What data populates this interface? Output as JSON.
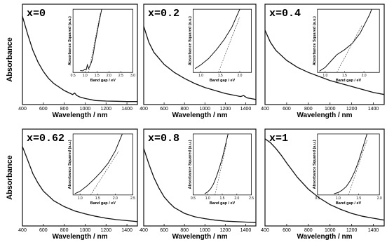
{
  "figure": {
    "row_ylabel": "Absorbance"
  },
  "chart_data": [
    {
      "type": "line",
      "panel_label": "x=0",
      "xlabel": "Wavelength / nm",
      "ylabel": "Absorbance",
      "xlim": [
        400,
        1500
      ],
      "ylim": [
        0,
        1
      ],
      "xticks": [
        400,
        600,
        800,
        1000,
        1200,
        1400
      ],
      "series": [
        {
          "x": [
            400,
            450,
            500,
            550,
            600,
            650,
            700,
            800,
            880,
            900,
            920,
            950,
            1000,
            1050,
            1100,
            1200,
            1300,
            1400,
            1500
          ],
          "y": [
            0.88,
            0.7,
            0.54,
            0.42,
            0.33,
            0.26,
            0.21,
            0.14,
            0.1,
            0.115,
            0.09,
            0.075,
            0.06,
            0.05,
            0.04,
            0.035,
            0.033,
            0.03,
            0.03
          ]
        }
      ],
      "inset": {
        "xlabel": "Band gap / eV",
        "ylabel": "Absorbance Squared (a.u.)",
        "xlim": [
          0.5,
          3.0
        ],
        "xticks": [
          "0.5",
          "1.0",
          "1.5",
          "2.0",
          "2.5",
          "3.0"
        ],
        "series": [
          {
            "x": [
              0.8,
              0.9,
              1.0,
              1.05,
              1.1,
              1.15,
              1.2,
              1.25,
              1.3,
              1.35,
              1.4,
              1.5,
              1.6,
              1.7
            ],
            "y": [
              0.03,
              0.025,
              0.05,
              0.04,
              0.12,
              0.06,
              0.1,
              0.14,
              0.2,
              0.3,
              0.42,
              0.62,
              0.82,
              1.0
            ]
          }
        ],
        "fit_line": {
          "x": [
            1.15,
            1.65
          ],
          "y": [
            0.0,
            0.95
          ]
        }
      }
    },
    {
      "type": "line",
      "panel_label": "x=0.2",
      "xlabel": "Wavelength / nm",
      "ylabel": "Absorbance",
      "xlim": [
        400,
        1500
      ],
      "ylim": [
        0,
        1
      ],
      "xticks": [
        400,
        600,
        800,
        1000,
        1200,
        1400
      ],
      "series": [
        {
          "x": [
            400,
            450,
            500,
            600,
            700,
            800,
            900,
            1000,
            1100,
            1200,
            1300,
            1350,
            1380,
            1400,
            1420,
            1450,
            1500
          ],
          "y": [
            0.78,
            0.62,
            0.52,
            0.4,
            0.32,
            0.26,
            0.21,
            0.17,
            0.14,
            0.11,
            0.09,
            0.08,
            0.09,
            0.075,
            0.065,
            0.06,
            0.05
          ]
        }
      ],
      "inset": {
        "xlabel": "Band gap / eV",
        "ylabel": "Absorbance Squared (a.u.)",
        "xlim": [
          0.8,
          2.3
        ],
        "xticks": [
          "1.0",
          "1.5",
          "2.0"
        ],
        "series": [
          {
            "x": [
              0.85,
              1.0,
              1.2,
              1.4,
              1.6,
              1.8,
              1.9,
              2.0
            ],
            "y": [
              0.06,
              0.12,
              0.22,
              0.36,
              0.52,
              0.72,
              0.86,
              1.0
            ]
          }
        ],
        "fit_line": {
          "x": [
            1.45,
            2.0
          ],
          "y": [
            0.0,
            0.88
          ]
        }
      }
    },
    {
      "type": "line",
      "panel_label": "x=0.4",
      "xlabel": "Wavelength / nm",
      "ylabel": "Absorbance",
      "xlim": [
        400,
        1500
      ],
      "ylim": [
        0,
        1
      ],
      "xticks": [
        400,
        600,
        800,
        1000,
        1200,
        1400
      ],
      "series": [
        {
          "x": [
            400,
            450,
            500,
            600,
            700,
            800,
            900,
            1000,
            1100,
            1200,
            1300,
            1400,
            1500
          ],
          "y": [
            0.74,
            0.62,
            0.54,
            0.44,
            0.37,
            0.32,
            0.28,
            0.24,
            0.21,
            0.18,
            0.15,
            0.12,
            0.1
          ]
        }
      ],
      "inset": {
        "xlabel": "Band gap / eV",
        "ylabel": "Absorbance Squared (a.u.)",
        "xlim": [
          0.8,
          2.4
        ],
        "xticks": [
          "1.0",
          "1.5",
          "2.0"
        ],
        "series": [
          {
            "x": [
              0.85,
              1.0,
              1.15,
              1.3,
              1.5,
              1.7,
              1.9,
              2.05,
              2.15,
              2.2
            ],
            "y": [
              0.02,
              0.08,
              0.18,
              0.28,
              0.36,
              0.46,
              0.62,
              0.8,
              0.92,
              1.0
            ]
          }
        ],
        "fit_line": {
          "x": [
            1.3,
            1.95
          ],
          "y": [
            0.0,
            0.75
          ]
        }
      }
    },
    {
      "type": "line",
      "panel_label": "x=0.62",
      "xlabel": "Wavelength / nm",
      "ylabel": "Absorbance",
      "xlim": [
        400,
        1500
      ],
      "ylim": [
        0,
        1
      ],
      "xticks": [
        400,
        600,
        800,
        1000,
        1200,
        1400
      ],
      "series": [
        {
          "x": [
            400,
            450,
            500,
            550,
            600,
            700,
            800,
            900,
            1000,
            1100,
            1200,
            1300,
            1400,
            1500
          ],
          "y": [
            0.82,
            0.68,
            0.54,
            0.44,
            0.36,
            0.26,
            0.2,
            0.155,
            0.125,
            0.1,
            0.08,
            0.065,
            0.055,
            0.045
          ]
        }
      ],
      "inset": {
        "xlabel": "Band gap / eV",
        "ylabel": "Absorbance Squared (a.u.)",
        "xlim": [
          0.8,
          2.5
        ],
        "xticks": [
          "1.0",
          "1.5",
          "2.0",
          "2.5"
        ],
        "series": [
          {
            "x": [
              0.85,
              1.0,
              1.2,
              1.4,
              1.6,
              1.8,
              2.0,
              2.1,
              2.2
            ],
            "y": [
              0.02,
              0.06,
              0.15,
              0.26,
              0.38,
              0.52,
              0.72,
              0.86,
              1.0
            ]
          }
        ],
        "fit_line": {
          "x": [
            1.3,
            2.1
          ],
          "y": [
            0.0,
            0.72
          ]
        }
      }
    },
    {
      "type": "line",
      "panel_label": "x=0.8",
      "xlabel": "Wavelength / nm",
      "ylabel": "Absorbance",
      "xlim": [
        400,
        1500
      ],
      "ylim": [
        0,
        1
      ],
      "xticks": [
        400,
        600,
        800,
        1000,
        1200,
        1400
      ],
      "series": [
        {
          "x": [
            400,
            450,
            500,
            550,
            600,
            650,
            700,
            800,
            900,
            1000,
            1100,
            1200,
            1300,
            1400,
            1500
          ],
          "y": [
            0.8,
            0.64,
            0.5,
            0.39,
            0.3,
            0.24,
            0.19,
            0.13,
            0.095,
            0.075,
            0.06,
            0.05,
            0.045,
            0.04,
            0.035
          ]
        }
      ],
      "inset": {
        "xlabel": "Band gap / eV",
        "ylabel": "Absorbance Squared (a.u.)",
        "xlim": [
          0.5,
          2.5
        ],
        "xticks": [
          "0.5",
          "1.0",
          "1.5",
          "2.0",
          "2.5"
        ],
        "series": [
          {
            "x": [
              0.9,
              1.0,
              1.1,
              1.2,
              1.3,
              1.4,
              1.5,
              1.6,
              1.7
            ],
            "y": [
              0.02,
              0.05,
              0.1,
              0.18,
              0.3,
              0.44,
              0.6,
              0.8,
              1.0
            ]
          }
        ],
        "fit_line": {
          "x": [
            1.25,
            1.65
          ],
          "y": [
            0.0,
            0.85
          ]
        }
      }
    },
    {
      "type": "line",
      "panel_label": "x=1",
      "xlabel": "Wavelength / nm",
      "ylabel": "Absorbance",
      "xlim": [
        400,
        1500
      ],
      "ylim": [
        0,
        1
      ],
      "xticks": [
        400,
        600,
        800,
        1000,
        1200,
        1400
      ],
      "series": [
        {
          "x": [
            400,
            450,
            500,
            550,
            600,
            700,
            800,
            900,
            1000,
            1100,
            1200,
            1300,
            1400,
            1500
          ],
          "y": [
            0.9,
            0.86,
            0.8,
            0.73,
            0.65,
            0.5,
            0.38,
            0.29,
            0.22,
            0.17,
            0.13,
            0.1,
            0.08,
            0.06
          ]
        }
      ],
      "inset": {
        "xlabel": "Band gap / eV",
        "ylabel": "Absorbance Squared (a.u.)",
        "xlim": [
          0.5,
          2.0
        ],
        "xticks": [
          "0.5",
          "1.0",
          "1.5",
          "2.0"
        ],
        "series": [
          {
            "x": [
              0.9,
              1.0,
              1.1,
              1.2,
              1.3,
              1.4,
              1.5,
              1.6,
              1.7
            ],
            "y": [
              0.02,
              0.04,
              0.08,
              0.14,
              0.24,
              0.38,
              0.56,
              0.78,
              1.0
            ]
          }
        ],
        "fit_line": {
          "x": [
            1.25,
            1.7
          ],
          "y": [
            0.0,
            0.9
          ]
        }
      }
    }
  ]
}
